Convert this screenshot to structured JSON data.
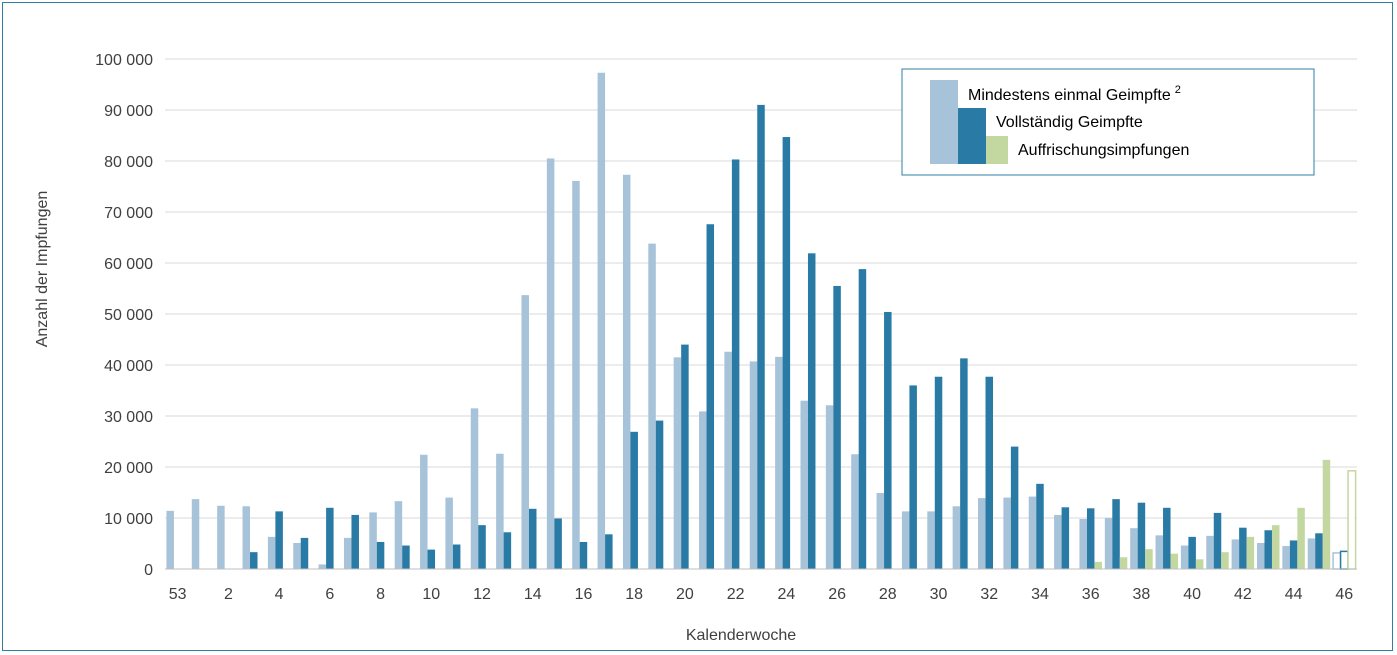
{
  "chart_data": {
    "type": "bar",
    "xlabel": "Kalenderwoche",
    "ylabel": "Anzahl der Impfungen",
    "ylim": [
      0,
      100000
    ],
    "yticks": [
      0,
      10000,
      20000,
      30000,
      40000,
      50000,
      60000,
      70000,
      80000,
      90000,
      100000
    ],
    "ytick_labels": [
      "0",
      "10 000",
      "20 000",
      "30 000",
      "40 000",
      "50 000",
      "60 000",
      "70 000",
      "80 000",
      "90 000",
      "100 000"
    ],
    "grid": true,
    "legend_position": "top-right",
    "categories": [
      "53",
      "1",
      "2",
      "3",
      "4",
      "5",
      "6",
      "7",
      "8",
      "9",
      "10",
      "11",
      "12",
      "13",
      "14",
      "15",
      "16",
      "17",
      "18",
      "19",
      "20",
      "21",
      "22",
      "23",
      "24",
      "25",
      "26",
      "27",
      "28",
      "29",
      "30",
      "31",
      "32",
      "33",
      "34",
      "35",
      "36",
      "37",
      "38",
      "39",
      "40",
      "41",
      "42",
      "43",
      "44",
      "45",
      "46"
    ],
    "xtick_labels": [
      "53",
      "",
      "2",
      "",
      "4",
      "",
      "6",
      "",
      "8",
      "",
      "10",
      "",
      "12",
      "",
      "14",
      "",
      "16",
      "",
      "18",
      "",
      "20",
      "",
      "22",
      "",
      "24",
      "",
      "26",
      "",
      "28",
      "",
      "30",
      "",
      "32",
      "",
      "34",
      "",
      "36",
      "",
      "38",
      "",
      "40",
      "",
      "42",
      "",
      "44",
      "",
      "46"
    ],
    "series": [
      {
        "name": "Mindestens einmal Geimpfte",
        "name_superscript": "2",
        "color": "#a7c3da",
        "values": [
          11400,
          13700,
          12400,
          12300,
          6300,
          5100,
          900,
          6100,
          11100,
          13300,
          22400,
          14000,
          31500,
          22600,
          53700,
          80500,
          76100,
          97300,
          77300,
          63800,
          41500,
          30900,
          42600,
          40700,
          41600,
          33000,
          32100,
          22500,
          14900,
          11300,
          11300,
          12300,
          13900,
          14000,
          14200,
          10600,
          9800,
          10000,
          8000,
          6600,
          4600,
          6500,
          5800,
          5100,
          4500,
          6000,
          3300
        ]
      },
      {
        "name": "Vollständig Geimpfte",
        "color": "#2a7aa6",
        "values": [
          0,
          0,
          0,
          3300,
          11300,
          6100,
          12000,
          10600,
          5300,
          4600,
          3800,
          4800,
          8600,
          7200,
          11800,
          9900,
          5300,
          6800,
          26900,
          29100,
          44000,
          67600,
          80300,
          91000,
          84700,
          61900,
          55500,
          58800,
          50400,
          36000,
          37700,
          41300,
          37700,
          24000,
          16700,
          12100,
          11900,
          13700,
          13000,
          12000,
          6300,
          11000,
          8100,
          7600,
          5600,
          7000,
          3600
        ]
      },
      {
        "name": "Auffrischungsimpfungen",
        "color": "#c3d8a0",
        "values": [
          0,
          0,
          0,
          0,
          0,
          0,
          0,
          0,
          0,
          0,
          0,
          0,
          0,
          0,
          0,
          0,
          0,
          0,
          0,
          0,
          0,
          0,
          0,
          0,
          0,
          0,
          0,
          0,
          0,
          0,
          0,
          0,
          0,
          0,
          0,
          0,
          1400,
          2300,
          3900,
          3000,
          1900,
          3300,
          6300,
          8600,
          12000,
          21400,
          19400
        ]
      }
    ],
    "outlined_last_week": "46"
  }
}
